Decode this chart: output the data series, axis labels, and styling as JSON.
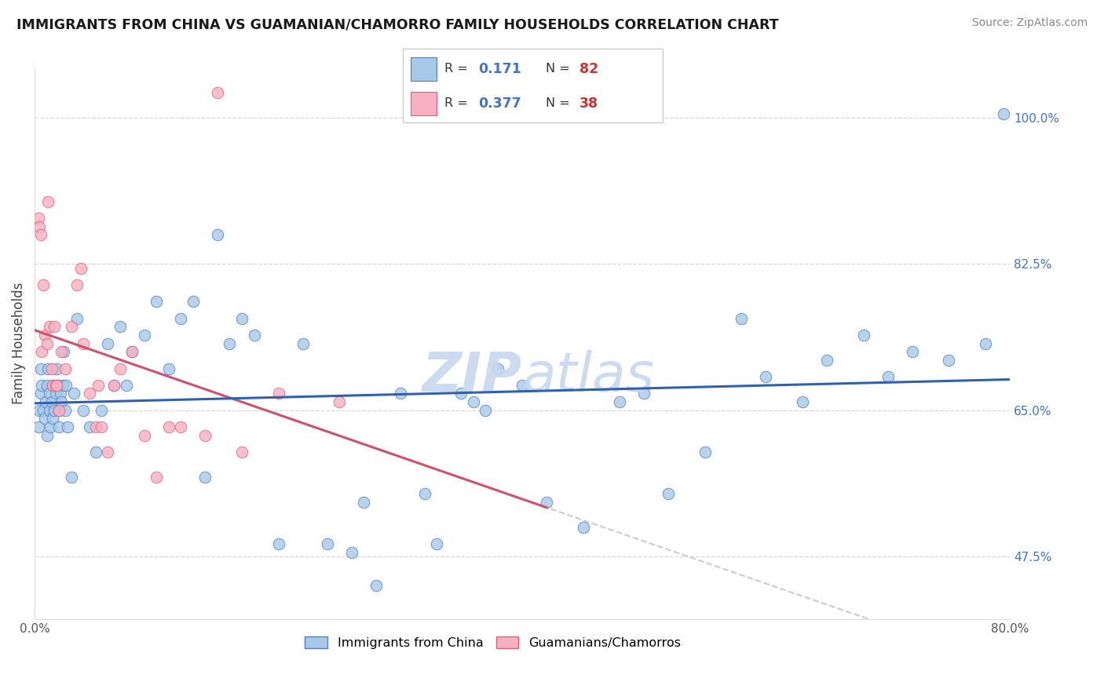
{
  "title": "IMMIGRANTS FROM CHINA VS GUAMANIAN/CHAMORRO FAMILY HOUSEHOLDS CORRELATION CHART",
  "source": "Source: ZipAtlas.com",
  "ylabel": "Family Households",
  "xlim": [
    0.0,
    80.0
  ],
  "ylim": [
    40.0,
    106.0
  ],
  "y_ticks": [
    47.5,
    65.0,
    82.5,
    100.0
  ],
  "x_ticks": [
    0.0,
    16.0,
    32.0,
    48.0,
    64.0,
    80.0
  ],
  "x_tick_show": [
    0.0,
    80.0
  ],
  "legend_china_r": "0.171",
  "legend_china_n": "82",
  "legend_guam_r": "0.377",
  "legend_guam_n": "38",
  "blue_scatter_color": "#a8c8e8",
  "pink_scatter_color": "#f8b0c0",
  "blue_edge_color": "#5080c0",
  "pink_edge_color": "#e06080",
  "blue_line_color": "#3060b0",
  "pink_line_color": "#d05070",
  "dashed_line_color": "#c0c0c0",
  "watermark_color": "#c8d8f0",
  "grid_color": "#d8d8d8",
  "right_tick_color": "#4472c4",
  "china_x": [
    0.3,
    0.4,
    0.5,
    0.5,
    0.6,
    0.7,
    0.8,
    0.9,
    1.0,
    1.0,
    1.1,
    1.2,
    1.2,
    1.3,
    1.4,
    1.5,
    1.5,
    1.6,
    1.7,
    1.8,
    1.9,
    2.0,
    2.0,
    2.1,
    2.2,
    2.3,
    2.4,
    2.5,
    2.6,
    2.7,
    3.0,
    3.2,
    3.5,
    4.0,
    4.5,
    5.0,
    5.5,
    6.0,
    6.5,
    7.0,
    7.5,
    8.0,
    9.0,
    10.0,
    11.0,
    12.0,
    13.0,
    14.0,
    15.0,
    16.0,
    17.0,
    18.0,
    20.0,
    22.0,
    24.0,
    26.0,
    27.0,
    28.0,
    30.0,
    32.0,
    33.0,
    35.0,
    36.0,
    37.0,
    38.0,
    40.0,
    42.0,
    45.0,
    48.0,
    50.0,
    52.0,
    55.0,
    58.0,
    60.0,
    63.0,
    65.0,
    68.0,
    70.0,
    72.0,
    75.0,
    78.0,
    79.5
  ],
  "china_y": [
    63.0,
    65.0,
    67.0,
    70.0,
    68.0,
    65.0,
    64.0,
    66.0,
    62.0,
    68.0,
    70.0,
    65.0,
    67.0,
    63.0,
    66.0,
    64.0,
    68.0,
    65.0,
    67.0,
    70.0,
    68.0,
    63.0,
    65.0,
    67.0,
    66.0,
    68.0,
    72.0,
    65.0,
    68.0,
    63.0,
    57.0,
    67.0,
    76.0,
    65.0,
    63.0,
    60.0,
    65.0,
    73.0,
    68.0,
    75.0,
    68.0,
    72.0,
    74.0,
    78.0,
    70.0,
    76.0,
    78.0,
    57.0,
    86.0,
    73.0,
    76.0,
    74.0,
    49.0,
    73.0,
    49.0,
    48.0,
    54.0,
    44.0,
    67.0,
    55.0,
    49.0,
    67.0,
    66.0,
    65.0,
    70.0,
    68.0,
    54.0,
    51.0,
    66.0,
    67.0,
    55.0,
    60.0,
    76.0,
    69.0,
    66.0,
    71.0,
    74.0,
    69.0,
    72.0,
    71.0,
    73.0,
    100.5
  ],
  "guam_x": [
    0.3,
    0.4,
    0.5,
    0.6,
    0.7,
    0.8,
    1.0,
    1.1,
    1.2,
    1.4,
    1.5,
    1.6,
    1.7,
    1.8,
    2.0,
    2.2,
    2.5,
    3.0,
    3.5,
    4.0,
    4.5,
    5.0,
    5.5,
    6.0,
    6.5,
    7.0,
    8.0,
    9.0,
    10.0,
    11.0,
    12.0,
    14.0,
    15.0,
    17.0,
    20.0,
    25.0,
    5.2,
    3.8
  ],
  "guam_y": [
    88.0,
    87.0,
    86.0,
    72.0,
    80.0,
    74.0,
    73.0,
    90.0,
    75.0,
    70.0,
    68.0,
    75.0,
    68.0,
    68.0,
    65.0,
    72.0,
    70.0,
    75.0,
    80.0,
    73.0,
    67.0,
    63.0,
    63.0,
    60.0,
    68.0,
    70.0,
    72.0,
    62.0,
    57.0,
    63.0,
    63.0,
    62.0,
    103.0,
    60.0,
    67.0,
    66.0,
    68.0,
    82.0
  ]
}
